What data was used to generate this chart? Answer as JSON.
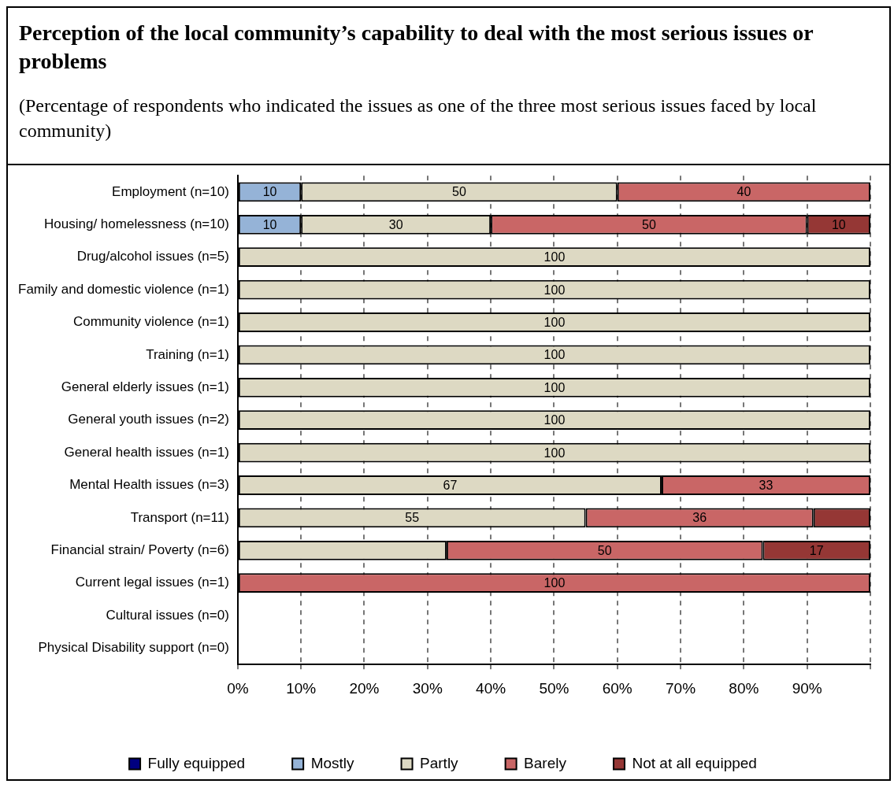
{
  "chart_data": {
    "type": "bar",
    "orientation": "horizontal",
    "stacked": true,
    "title": "Perception of the local community’s capability to deal with the most serious issues or problems",
    "subtitle": "(Percentage of respondents who indicated the issues as one of the three most serious issues faced by local community)",
    "categories": [
      "Employment (n=10)",
      "Housing/ homelessness (n=10)",
      "Drug/alcohol issues (n=5)",
      "Family and domestic violence (n=1)",
      "Community violence (n=1)",
      "Training (n=1)",
      "General elderly issues (n=1)",
      "General youth issues (n=2)",
      "General health issues (n=1)",
      "Mental Health issues (n=3)",
      "Transport (n=11)",
      "Financial strain/ Poverty (n=6)",
      "Current legal issues (n=1)",
      "Cultural issues (n=0)",
      "Physical Disability support (n=0)"
    ],
    "series": [
      {
        "name": "Fully equipped",
        "color": "#000080",
        "values": [
          null,
          null,
          null,
          null,
          null,
          null,
          null,
          null,
          null,
          null,
          null,
          null,
          null,
          null,
          null
        ]
      },
      {
        "name": "Mostly",
        "color": "#95b3d7",
        "values": [
          10,
          10,
          null,
          null,
          null,
          null,
          null,
          null,
          null,
          null,
          null,
          null,
          null,
          null,
          null
        ],
        "value_labels": [
          "10",
          "10",
          null,
          null,
          null,
          null,
          null,
          null,
          null,
          null,
          null,
          null,
          null,
          null,
          null
        ]
      },
      {
        "name": "Partly",
        "color": "#ddd9c3",
        "values": [
          50,
          30,
          100,
          100,
          100,
          100,
          100,
          100,
          100,
          67,
          55,
          33,
          null,
          null,
          null
        ],
        "value_labels": [
          "50",
          "30",
          "100",
          "100",
          "100",
          "100",
          "100",
          "100",
          "100",
          "67",
          "55",
          null,
          null,
          null,
          null
        ]
      },
      {
        "name": "Barely",
        "color": "#c96666",
        "values": [
          40,
          50,
          null,
          null,
          null,
          null,
          null,
          null,
          null,
          33,
          36,
          50,
          100,
          null,
          null
        ],
        "value_labels": [
          "40",
          "50",
          null,
          null,
          null,
          null,
          null,
          null,
          null,
          "33",
          "36",
          "50",
          "100",
          null,
          null
        ]
      },
      {
        "name": "Not at all equipped",
        "color": "#953735",
        "values": [
          null,
          10,
          null,
          null,
          null,
          null,
          null,
          null,
          null,
          null,
          9,
          17,
          null,
          null,
          null
        ],
        "value_labels": [
          null,
          "10",
          null,
          null,
          null,
          null,
          null,
          null,
          null,
          null,
          null,
          "17",
          null,
          null,
          null
        ]
      }
    ],
    "xlim": [
      0,
      100
    ],
    "xticks": [
      {
        "value": 0,
        "label": "0%"
      },
      {
        "value": 10,
        "label": "10%"
      },
      {
        "value": 20,
        "label": "20%"
      },
      {
        "value": 30,
        "label": "30%"
      },
      {
        "value": 40,
        "label": "40%"
      },
      {
        "value": 50,
        "label": "50%"
      },
      {
        "value": 60,
        "label": "60%"
      },
      {
        "value": 70,
        "label": "70%"
      },
      {
        "value": 80,
        "label": "80%"
      },
      {
        "value": 90,
        "label": "90%"
      },
      {
        "value": 100,
        "label": null
      }
    ],
    "grid": "x",
    "legend": "bottom"
  }
}
